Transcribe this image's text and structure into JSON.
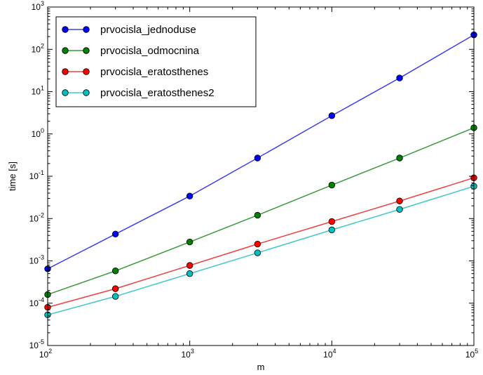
{
  "chart_data": {
    "type": "line",
    "title": "",
    "xlabel": "m",
    "ylabel": "time [s]",
    "xscale": "log",
    "yscale": "log",
    "xlim": [
      100,
      100000
    ],
    "ylim": [
      1e-05,
      1000
    ],
    "grid": false,
    "legend_position": "top-left",
    "x": [
      100,
      300,
      1000,
      3000,
      10000,
      30000,
      100000
    ],
    "x_ticks": [
      {
        "value": 100,
        "base": "10",
        "exp": "2"
      },
      {
        "value": 1000,
        "base": "10",
        "exp": "3"
      },
      {
        "value": 10000,
        "base": "10",
        "exp": "4"
      },
      {
        "value": 100000,
        "base": "10",
        "exp": "5"
      }
    ],
    "y_ticks": [
      {
        "value": 1e-05,
        "base": "10",
        "exp": "-5"
      },
      {
        "value": 0.0001,
        "base": "10",
        "exp": "-4"
      },
      {
        "value": 0.001,
        "base": "10",
        "exp": "-3"
      },
      {
        "value": 0.01,
        "base": "10",
        "exp": "-2"
      },
      {
        "value": 0.1,
        "base": "10",
        "exp": "-1"
      },
      {
        "value": 1,
        "base": "10",
        "exp": "0"
      },
      {
        "value": 10,
        "base": "10",
        "exp": "1"
      },
      {
        "value": 100,
        "base": "10",
        "exp": "2"
      },
      {
        "value": 1000,
        "base": "10",
        "exp": "3"
      }
    ],
    "series": [
      {
        "name": "prvocisla_jednoduse",
        "color": "#0000ff",
        "line_color": "#4040e6",
        "values": [
          0.00065,
          0.0043,
          0.034,
          0.27,
          2.7,
          21,
          220
        ]
      },
      {
        "name": "prvocisla_odmocnina",
        "color": "#008000",
        "line_color": "#3b9a3b",
        "values": [
          0.00016,
          0.00058,
          0.0028,
          0.012,
          0.062,
          0.27,
          1.4
        ]
      },
      {
        "name": "prvocisla_eratosthenes",
        "color": "#ff0000",
        "line_color": "#f04040",
        "values": [
          8e-05,
          0.00022,
          0.00078,
          0.0025,
          0.0085,
          0.026,
          0.092
        ]
      },
      {
        "name": "prvocisla_eratosthenes2",
        "color": "#00bfbf",
        "line_color": "#40c8c8",
        "values": [
          5.3e-05,
          0.000145,
          0.0005,
          0.00155,
          0.0054,
          0.0165,
          0.058
        ]
      }
    ]
  }
}
